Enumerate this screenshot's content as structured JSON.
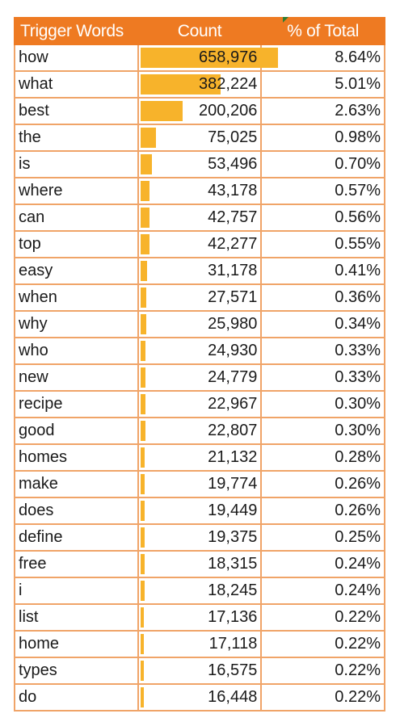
{
  "chart_data": {
    "type": "table",
    "columns": [
      "Trigger Words",
      "Count",
      "% of Total"
    ],
    "bar_color": "#f7b32b",
    "header_color": "#ee7a22",
    "border_color": "#f0a468",
    "count_max": 658976,
    "rows": [
      {
        "word": "how",
        "count": 658976,
        "count_label": "658,976",
        "pct": "8.64%"
      },
      {
        "word": "what",
        "count": 382224,
        "count_label": "382,224",
        "pct": "5.01%"
      },
      {
        "word": "best",
        "count": 200206,
        "count_label": "200,206",
        "pct": "2.63%"
      },
      {
        "word": "the",
        "count": 75025,
        "count_label": "75,025",
        "pct": "0.98%"
      },
      {
        "word": "is",
        "count": 53496,
        "count_label": "53,496",
        "pct": "0.70%"
      },
      {
        "word": "where",
        "count": 43178,
        "count_label": "43,178",
        "pct": "0.57%"
      },
      {
        "word": "can",
        "count": 42757,
        "count_label": "42,757",
        "pct": "0.56%"
      },
      {
        "word": "top",
        "count": 42277,
        "count_label": "42,277",
        "pct": "0.55%"
      },
      {
        "word": "easy",
        "count": 31178,
        "count_label": "31,178",
        "pct": "0.41%"
      },
      {
        "word": "when",
        "count": 27571,
        "count_label": "27,571",
        "pct": "0.36%"
      },
      {
        "word": "why",
        "count": 25980,
        "count_label": "25,980",
        "pct": "0.34%"
      },
      {
        "word": "who",
        "count": 24930,
        "count_label": "24,930",
        "pct": "0.33%"
      },
      {
        "word": "new",
        "count": 24779,
        "count_label": "24,779",
        "pct": "0.33%"
      },
      {
        "word": "recipe",
        "count": 22967,
        "count_label": "22,967",
        "pct": "0.30%"
      },
      {
        "word": "good",
        "count": 22807,
        "count_label": "22,807",
        "pct": "0.30%"
      },
      {
        "word": "homes",
        "count": 21132,
        "count_label": "21,132",
        "pct": "0.28%"
      },
      {
        "word": "make",
        "count": 19774,
        "count_label": "19,774",
        "pct": "0.26%"
      },
      {
        "word": "does",
        "count": 19449,
        "count_label": "19,449",
        "pct": "0.26%"
      },
      {
        "word": "define",
        "count": 19375,
        "count_label": "19,375",
        "pct": "0.25%"
      },
      {
        "word": "free",
        "count": 18315,
        "count_label": "18,315",
        "pct": "0.24%"
      },
      {
        "word": "i",
        "count": 18245,
        "count_label": "18,245",
        "pct": "0.24%"
      },
      {
        "word": "list",
        "count": 17136,
        "count_label": "17,136",
        "pct": "0.22%"
      },
      {
        "word": "home",
        "count": 17118,
        "count_label": "17,118",
        "pct": "0.22%"
      },
      {
        "word": "types",
        "count": 16575,
        "count_label": "16,575",
        "pct": "0.22%"
      },
      {
        "word": "do",
        "count": 16448,
        "count_label": "16,448",
        "pct": "0.22%"
      }
    ]
  }
}
